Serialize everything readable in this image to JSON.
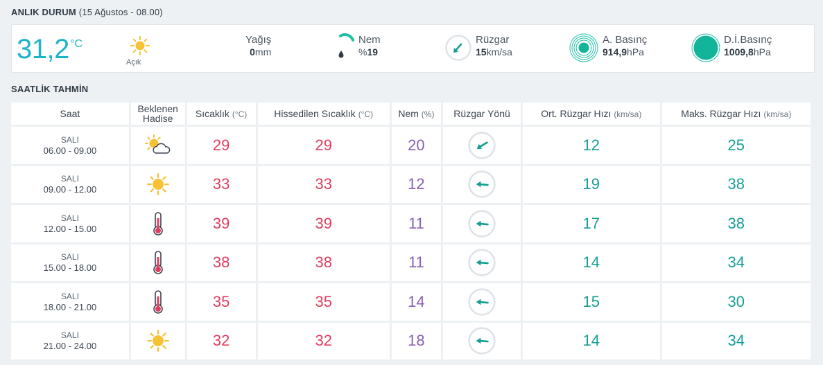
{
  "current": {
    "title": "ANLIK DURUM",
    "subtitle": "(15 Ağustos - 08.00)",
    "temperature": "31,2",
    "unit": "°C",
    "condition": "Açık",
    "condition_icon": "sun-icon",
    "precipitation": {
      "label": "Yağış",
      "value": "0",
      "unit": "mm"
    },
    "humidity": {
      "label": "Nem",
      "prefix": "%",
      "value": "19",
      "icon": "humidity-gauge-icon"
    },
    "wind": {
      "label": "Rüzgar",
      "value": "15",
      "unit": "km/sa",
      "icon": "wind-direction-icon"
    },
    "pressure": {
      "label": "A. Basınç",
      "value": "914,9",
      "unit": "hPa",
      "icon": "pressure-icon"
    },
    "sea_pressure": {
      "label": "D.İ.Basınç",
      "value": "1009,8",
      "unit": "hPa",
      "icon": "sea-level-pressure-icon"
    }
  },
  "forecast": {
    "title": "SAATLİK TAHMİN",
    "headers": {
      "saat": "Saat",
      "hadise_1": "Beklenen",
      "hadise_2": "Hadise",
      "temp": "Sıcaklık",
      "temp_unit": "(°C)",
      "feel": "Hissedilen Sıcaklık",
      "feel_unit": "(°C)",
      "hum": "Nem",
      "hum_unit": "(%)",
      "dir": "Rüzgar Yönü",
      "avg": "Ort. Rüzgar Hızı",
      "avg_unit": "(km/sa)",
      "max": "Maks. Rüzgar Hızı",
      "max_unit": "(km/sa)"
    },
    "rows": [
      {
        "day": "SALI",
        "time": "06.00 - 09.00",
        "icon": "partly-cloudy-icon",
        "temp": "29",
        "feel": "29",
        "hum": "20",
        "dir_icon": "arrow-southwest-icon",
        "avg": "12",
        "max": "25"
      },
      {
        "day": "SALI",
        "time": "09.00 - 12.00",
        "icon": "sun-icon",
        "temp": "33",
        "feel": "33",
        "hum": "12",
        "dir_icon": "arrow-west-icon",
        "avg": "19",
        "max": "38"
      },
      {
        "day": "SALI",
        "time": "12.00 - 15.00",
        "icon": "thermometer-icon",
        "temp": "39",
        "feel": "39",
        "hum": "11",
        "dir_icon": "arrow-west-icon",
        "avg": "17",
        "max": "38"
      },
      {
        "day": "SALI",
        "time": "15.00 - 18.00",
        "icon": "thermometer-icon",
        "temp": "38",
        "feel": "38",
        "hum": "11",
        "dir_icon": "arrow-west-icon",
        "avg": "14",
        "max": "34"
      },
      {
        "day": "SALI",
        "time": "18.00 - 21.00",
        "icon": "thermometer-icon",
        "temp": "35",
        "feel": "35",
        "hum": "14",
        "dir_icon": "arrow-west-icon",
        "avg": "15",
        "max": "30"
      },
      {
        "day": "SALI",
        "time": "21.00 - 24.00",
        "icon": "sun-icon",
        "temp": "32",
        "feel": "32",
        "hum": "18",
        "dir_icon": "arrow-west-icon",
        "avg": "14",
        "max": "34"
      }
    ]
  },
  "colors": {
    "accent": "#1fb3c8",
    "temperature": "#e23d5f",
    "humidity": "#8a5fb3",
    "wind": "#159e93",
    "sun": "#f6c233"
  }
}
